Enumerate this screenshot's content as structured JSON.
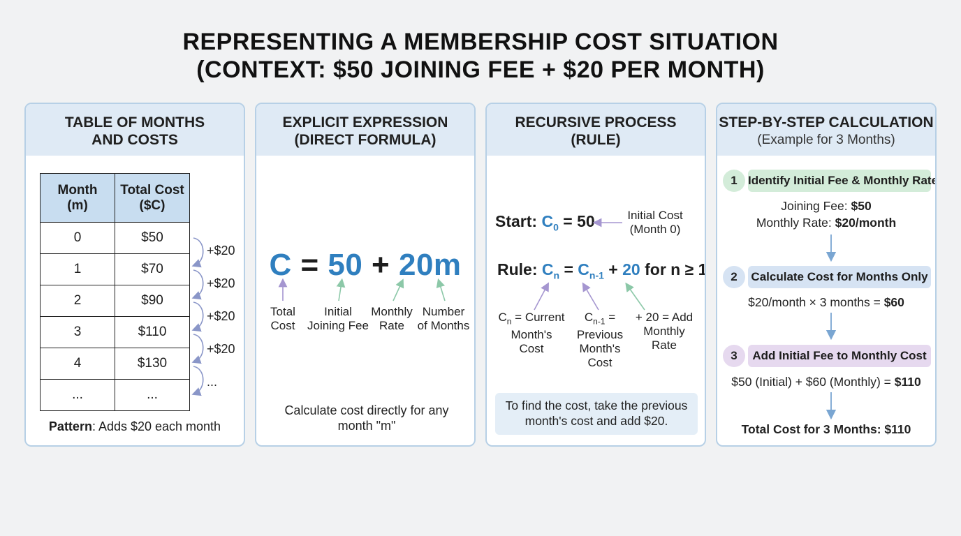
{
  "title": {
    "line1": "REPRESENTING A MEMBERSHIP COST SITUATION",
    "line2": "(CONTEXT: $50 JOINING FEE + $20 PER MONTH)"
  },
  "table_panel": {
    "header_line1": "TABLE OF MONTHS",
    "header_line2": "AND COSTS",
    "columns": [
      {
        "line1": "Month",
        "line2": "(m)"
      },
      {
        "line1": "Total Cost",
        "line2": "($C)"
      }
    ],
    "rows": [
      {
        "month": "0",
        "cost": "$50"
      },
      {
        "month": "1",
        "cost": "$70"
      },
      {
        "month": "2",
        "cost": "$90"
      },
      {
        "month": "3",
        "cost": "$110"
      },
      {
        "month": "4",
        "cost": "$130"
      },
      {
        "month": "...",
        "cost": "..."
      }
    ],
    "increments": [
      "+$20",
      "+$20",
      "+$20",
      "+$20",
      "..."
    ],
    "pattern_label": "Pattern",
    "pattern_text": ": Adds $20 each month"
  },
  "explicit_panel": {
    "header_line1": "EXPLICIT EXPRESSION",
    "header_line2": "(DIRECT FORMULA)",
    "formula": {
      "c": "C",
      "eq": " = ",
      "fee": "50",
      "plus": " + ",
      "rate": "20m"
    },
    "labels": [
      {
        "line1": "Total",
        "line2": "Cost"
      },
      {
        "line1": "Initial",
        "line2": "Joining Fee"
      },
      {
        "line1": "Monthly",
        "line2": "Rate"
      },
      {
        "line1": "Number",
        "line2": "of Months"
      }
    ],
    "note_line1": "Calculate cost directly for any",
    "note_line2": "month \"m\""
  },
  "recursive_panel": {
    "header_line1": "RECURSIVE PROCESS",
    "header_line2": "(RULE)",
    "start_prefix": "Start: ",
    "start_var": "C",
    "start_sub": "0",
    "start_value": " = 50",
    "start_note_line1": "Initial Cost",
    "start_note_line2": "(Month 0)",
    "rule_prefix": "Rule: ",
    "rule_var": "C",
    "rule_sub": "n",
    "rule_eq": " = ",
    "rule_prev_var": "C",
    "rule_prev_sub": "n-1",
    "rule_plus": " + ",
    "rule_add": "20",
    "rule_cond": " for n ≥ 1",
    "labels": {
      "current_var": "C",
      "current_sub": "n",
      "current_line1": " = Current",
      "current_line2": "Month's",
      "current_line3": "Cost",
      "previous_var": "C",
      "previous_sub": "n-1",
      "previous_line1": " =",
      "previous_line2": "Previous",
      "previous_line3": "Month's",
      "previous_line4": "Cost",
      "add_line1": "+ 20 = Add",
      "add_line2": "Monthly",
      "add_line3": "Rate"
    },
    "note_line1": "To find the cost, take the previous",
    "note_line2": "month's cost and add $20."
  },
  "steps_panel": {
    "header_line1": "STEP-BY-STEP CALCULATION",
    "header_line2": "(Example for 3 Months)",
    "steps": [
      {
        "number": "1",
        "label": "Identify Initial Fee & Monthly Rate",
        "detail1_prefix": "Joining Fee: ",
        "detail1_bold": "$50",
        "detail2_prefix": "Monthly Rate: ",
        "detail2_bold": "$20/month"
      },
      {
        "number": "2",
        "label": "Calculate Cost for Months Only",
        "detail1_prefix": "$20/month × 3 months = ",
        "detail1_bold": "$60"
      },
      {
        "number": "3",
        "label": "Add Initial Fee to Monthly Cost",
        "detail1_prefix": "$50 (Initial) + $60 (Monthly) = ",
        "detail1_bold": "$110"
      }
    ],
    "total": "Total Cost for 3 Months: $110"
  },
  "colors": {
    "accent_blue": "#2f7fbf",
    "header_bg": "#dfeaf5",
    "step1": "#d3ecd9",
    "step2": "#d6e3f3",
    "step3": "#e6d9ef"
  }
}
